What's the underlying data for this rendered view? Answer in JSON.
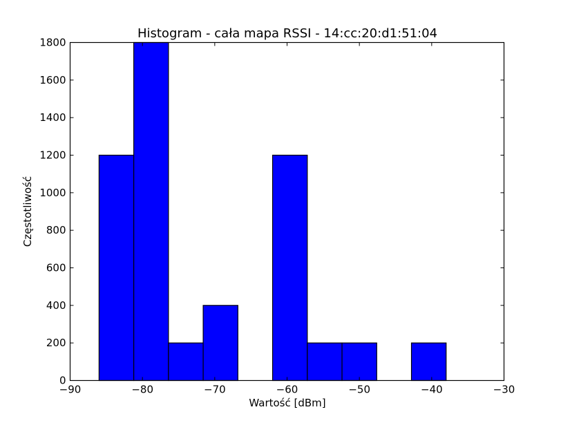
{
  "chart_data": {
    "type": "bar",
    "title": "Histogram - cała mapa RSSI - 14:cc:20:d1:51:04",
    "xlabel": "Wartość [dBm]",
    "ylabel": "Częstotliwość",
    "xlim": [
      -90,
      -30
    ],
    "ylim": [
      0,
      1800
    ],
    "xticks": [
      -90,
      -80,
      -70,
      -60,
      -50,
      -40,
      -30
    ],
    "xtick_labels": [
      "−90",
      "−80",
      "−70",
      "−60",
      "−50",
      "−40",
      "−30"
    ],
    "yticks": [
      0,
      200,
      400,
      600,
      800,
      1000,
      1200,
      1400,
      1600,
      1800
    ],
    "ytick_labels": [
      "0",
      "200",
      "400",
      "600",
      "800",
      "1000",
      "1200",
      "1400",
      "1600",
      "1800"
    ],
    "bins": [
      {
        "x0": -86.0,
        "x1": -81.2,
        "count": 1200
      },
      {
        "x0": -81.2,
        "x1": -76.4,
        "count": 1800
      },
      {
        "x0": -76.4,
        "x1": -71.6,
        "count": 200
      },
      {
        "x0": -71.6,
        "x1": -66.8,
        "count": 400
      },
      {
        "x0": -66.8,
        "x1": -62.0,
        "count": 0
      },
      {
        "x0": -62.0,
        "x1": -57.2,
        "count": 1200
      },
      {
        "x0": -57.2,
        "x1": -52.4,
        "count": 200
      },
      {
        "x0": -52.4,
        "x1": -47.6,
        "count": 200
      },
      {
        "x0": -47.6,
        "x1": -42.8,
        "count": 0
      },
      {
        "x0": -42.8,
        "x1": -38.0,
        "count": 200
      }
    ],
    "grid": false,
    "colors": {
      "bar": "#0000ff",
      "edge": "#000000"
    }
  }
}
